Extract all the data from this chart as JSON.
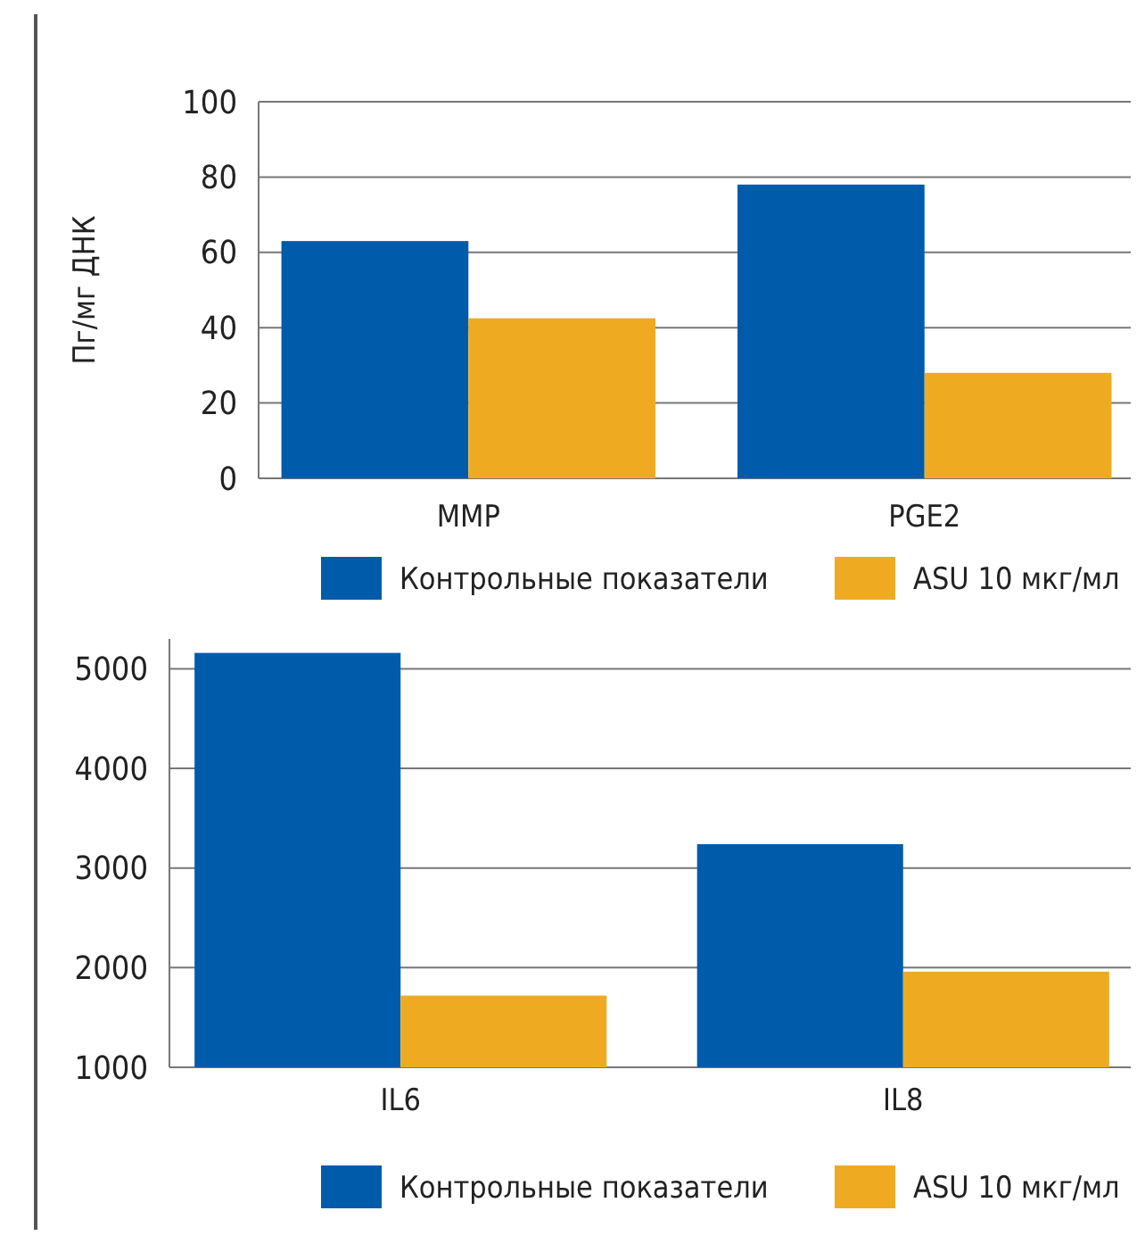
{
  "chart_data": [
    {
      "type": "bar",
      "ylabel": "Пг/мг ДНК",
      "categories": [
        "MMP",
        "PGE2"
      ],
      "series": [
        {
          "name": "Контрольные показатели",
          "color": "#005bab",
          "values": [
            63,
            78
          ]
        },
        {
          "name": "ASU 10 мкг/мл",
          "color": "#eeab22",
          "values": [
            42.5,
            28
          ]
        }
      ],
      "ylim": [
        0,
        100
      ],
      "yticks": [
        0,
        20,
        40,
        60,
        80,
        100
      ],
      "grid": "y",
      "legend": "bottom"
    },
    {
      "type": "bar",
      "categories": [
        "IL6",
        "IL8"
      ],
      "series": [
        {
          "name": "Контрольные показатели",
          "color": "#005bab",
          "values": [
            5160,
            3240
          ]
        },
        {
          "name": "ASU 10 мкг/мл",
          "color": "#eeab22",
          "values": [
            1720,
            1960
          ]
        }
      ],
      "ylim": [
        1000,
        5300
      ],
      "yticks": [
        1000,
        2000,
        3000,
        4000,
        5000
      ],
      "grid": "y",
      "legend": "bottom"
    }
  ]
}
